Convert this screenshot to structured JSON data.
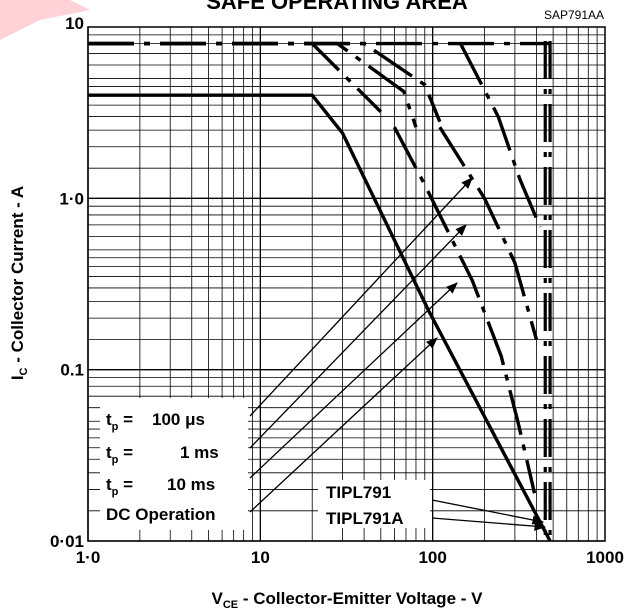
{
  "chart_data": {
    "type": "line",
    "title": "SAFE OPERATING AREA",
    "figure_code": "SAP791AA",
    "xlabel": {
      "main": "V",
      "sub": "CE",
      "rest": " - Collector-Emitter Voltage - V"
    },
    "ylabel": {
      "main": "I",
      "sub": "C",
      "rest": " - Collector Current - A"
    },
    "xscale": "log",
    "yscale": "log",
    "xlim": [
      1,
      1000
    ],
    "ylim": [
      0.01,
      10
    ],
    "grid": true,
    "x_tick_labels": [
      {
        "value": 1,
        "label": "1·0"
      },
      {
        "value": 10,
        "label": "10"
      },
      {
        "value": 100,
        "label": "100"
      },
      {
        "value": 1000,
        "label": "1000"
      }
    ],
    "y_tick_labels": [
      {
        "value": 0.01,
        "label": "0·01"
      },
      {
        "value": 0.1,
        "label": "0.1"
      },
      {
        "value": 1,
        "label": "1·0"
      },
      {
        "value": 10,
        "label": "10"
      }
    ],
    "legend_entries": [
      {
        "prefix": "t",
        "sub": "p",
        "eq": " =",
        "value": "100 μs"
      },
      {
        "prefix": "t",
        "sub": "p",
        "eq": " =",
        "value": "1 ms"
      },
      {
        "prefix": "t",
        "sub": "p",
        "eq": " =",
        "value": "10 ms"
      },
      {
        "label": "DC Operation"
      }
    ],
    "device_labels": [
      "TIPL791",
      "TIPL791A"
    ],
    "voltage_limits": [
      {
        "device": "TIPL791",
        "vce_max": 450,
        "style": "dash-dot"
      },
      {
        "device": "TIPL791A",
        "vce_max": 480,
        "style": "dash-dot"
      }
    ],
    "series": [
      {
        "line_style": "solid",
        "points": [
          [
            1,
            4
          ],
          [
            20,
            4
          ],
          [
            30,
            2.4
          ],
          [
            95,
            0.22
          ],
          [
            480,
            0.01
          ]
        ]
      },
      {
        "line_style": "dashed",
        "points": [
          [
            1,
            8
          ],
          [
            20,
            8
          ],
          [
            50,
            3.2
          ]
        ]
      },
      {
        "line_style": "dashed",
        "points": [
          [
            1,
            8
          ],
          [
            28,
            8
          ],
          [
            68,
            4.2
          ],
          [
            80,
            2.6
          ]
        ]
      },
      {
        "line_style": "dashed",
        "points": [
          [
            1,
            8
          ],
          [
            40,
            8
          ],
          [
            90,
            4.6
          ],
          [
            110,
            2.8
          ]
        ]
      },
      {
        "line_style": "dashed",
        "points": [
          [
            1,
            8
          ],
          [
            480,
            8
          ]
        ]
      },
      {
        "line_style": "dashed",
        "points": [
          [
            60,
            2.6
          ],
          [
            90,
            1.2
          ],
          [
            170,
            0.33
          ],
          [
            250,
            0.12
          ],
          [
            315,
            0.048
          ],
          [
            390,
            0.019
          ]
        ]
      },
      {
        "line_style": "dashed",
        "points": [
          [
            110,
            2.6
          ],
          [
            200,
            1.0
          ],
          [
            300,
            0.42
          ],
          [
            400,
            0.15
          ]
        ]
      },
      {
        "line_style": "dashed",
        "points": [
          [
            145,
            8
          ],
          [
            240,
            3.0
          ],
          [
            320,
            1.3
          ],
          [
            420,
            0.68
          ]
        ]
      }
    ]
  }
}
